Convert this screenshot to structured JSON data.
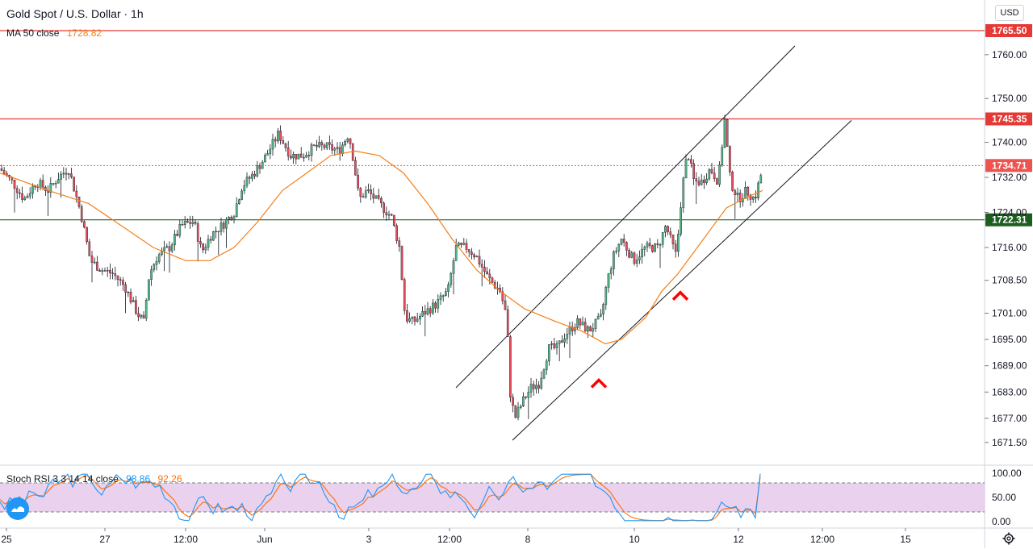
{
  "header": {
    "symbol_title": "Gold Spot / U.S. Dollar · 1h",
    "ma_label": "MA 50 close",
    "ma_value": "1728.82",
    "currency": "USD"
  },
  "oscillator": {
    "label": "Stoch RSI 3 3 14 14 close",
    "k_value": "98.86",
    "d_value": "92.26",
    "upper_band": 80,
    "lower_band": 20,
    "ticks": [
      "100.00",
      "50.00",
      "0.00"
    ]
  },
  "colors": {
    "up_candle": "#53b987",
    "down_candle": "#eb4d5c",
    "wick": "#131722",
    "ma": "#f57f17",
    "resistance": "#e53935",
    "support": "#1b5e20",
    "last_price": "#ef5350",
    "k_line": "#2196f3",
    "d_line": "#ff6d00",
    "band_fill": "#e1bee7",
    "marker": "#ff0000"
  },
  "chart_data": {
    "type": "candlestick",
    "title": "Gold Spot / U.S. Dollar · 1h",
    "y_axis_ticks": [
      "1760.00",
      "1750.00",
      "1740.00",
      "1732.00",
      "1724.00",
      "1716.00",
      "1708.50",
      "1701.00",
      "1695.00",
      "1689.00",
      "1683.00",
      "1677.00",
      "1671.50"
    ],
    "y_axis_values": [
      1760.0,
      1750.0,
      1740.0,
      1732.0,
      1724.0,
      1716.0,
      1708.5,
      1701.0,
      1695.0,
      1689.0,
      1683.0,
      1677.0,
      1671.5
    ],
    "x_axis_ticks": [
      "25",
      "27",
      "12:00",
      "Jun",
      "3",
      "12:00",
      "8",
      "10",
      "12",
      "12:00",
      "15"
    ],
    "ylim": [
      1669,
      1771
    ],
    "horizontal_levels": [
      {
        "value": 1765.5,
        "label": "1765.50",
        "role": "resistance"
      },
      {
        "value": 1745.35,
        "label": "1745.35",
        "role": "resistance"
      },
      {
        "value": 1734.71,
        "label": "1734.71",
        "role": "last_price"
      },
      {
        "value": 1722.31,
        "label": "1722.31",
        "role": "support"
      }
    ],
    "ma_path": [
      [
        0,
        1733
      ],
      [
        60,
        1729
      ],
      [
        110,
        1726
      ],
      [
        150,
        1721
      ],
      [
        190,
        1716
      ],
      [
        230,
        1713
      ],
      [
        260,
        1713
      ],
      [
        290,
        1716
      ],
      [
        320,
        1722
      ],
      [
        350,
        1729
      ],
      [
        380,
        1733
      ],
      [
        410,
        1737
      ],
      [
        440,
        1738
      ],
      [
        470,
        1737
      ],
      [
        500,
        1733
      ],
      [
        530,
        1726
      ],
      [
        560,
        1718
      ],
      [
        590,
        1711
      ],
      [
        620,
        1706
      ],
      [
        650,
        1702
      ],
      [
        690,
        1699
      ],
      [
        720,
        1697
      ],
      [
        750,
        1694
      ],
      [
        770,
        1695
      ],
      [
        800,
        1700
      ],
      [
        820,
        1706
      ],
      [
        840,
        1710
      ],
      [
        860,
        1715
      ],
      [
        880,
        1720
      ],
      [
        900,
        1725
      ],
      [
        920,
        1727
      ],
      [
        945,
        1729
      ]
    ],
    "price_path": [
      [
        0,
        1734
      ],
      [
        15,
        1731
      ],
      [
        30,
        1727
      ],
      [
        45,
        1731
      ],
      [
        60,
        1729
      ],
      [
        72,
        1732
      ],
      [
        85,
        1734
      ],
      [
        100,
        1724
      ],
      [
        112,
        1713
      ],
      [
        125,
        1711
      ],
      [
        140,
        1710
      ],
      [
        155,
        1707
      ],
      [
        170,
        1701
      ],
      [
        178,
        1699
      ],
      [
        185,
        1710
      ],
      [
        195,
        1714
      ],
      [
        210,
        1716
      ],
      [
        225,
        1721
      ],
      [
        240,
        1722
      ],
      [
        250,
        1715
      ],
      [
        262,
        1719
      ],
      [
        275,
        1721
      ],
      [
        290,
        1724
      ],
      [
        300,
        1730
      ],
      [
        315,
        1733
      ],
      [
        330,
        1737
      ],
      [
        345,
        1742
      ],
      [
        360,
        1737
      ],
      [
        375,
        1737
      ],
      [
        390,
        1739
      ],
      [
        405,
        1739
      ],
      [
        420,
        1738
      ],
      [
        432,
        1742
      ],
      [
        438,
        1736
      ],
      [
        445,
        1727
      ],
      [
        455,
        1729
      ],
      [
        470,
        1726
      ],
      [
        485,
        1723
      ],
      [
        495,
        1716
      ],
      [
        502,
        1700
      ],
      [
        512,
        1699
      ],
      [
        525,
        1701
      ],
      [
        540,
        1703
      ],
      [
        555,
        1706
      ],
      [
        565,
        1716
      ],
      [
        578,
        1716
      ],
      [
        590,
        1714
      ],
      [
        605,
        1709
      ],
      [
        620,
        1706
      ],
      [
        628,
        1700
      ],
      [
        632,
        1683
      ],
      [
        638,
        1677
      ],
      [
        648,
        1681
      ],
      [
        658,
        1684
      ],
      [
        668,
        1685
      ],
      [
        680,
        1693
      ],
      [
        690,
        1693
      ],
      [
        700,
        1696
      ],
      [
        715,
        1699
      ],
      [
        730,
        1697
      ],
      [
        745,
        1700
      ],
      [
        752,
        1708
      ],
      [
        760,
        1714
      ],
      [
        770,
        1718
      ],
      [
        785,
        1713
      ],
      [
        800,
        1716
      ],
      [
        815,
        1716
      ],
      [
        825,
        1721
      ],
      [
        838,
        1714
      ],
      [
        845,
        1729
      ],
      [
        852,
        1738
      ],
      [
        860,
        1731
      ],
      [
        870,
        1731
      ],
      [
        880,
        1734
      ],
      [
        890,
        1731
      ],
      [
        898,
        1745
      ],
      [
        905,
        1731
      ],
      [
        915,
        1727
      ],
      [
        925,
        1729
      ],
      [
        935,
        1727
      ],
      [
        945,
        1734
      ]
    ],
    "upper_channel": [
      [
        565,
        1684
      ],
      [
        985,
        1762
      ]
    ],
    "lower_channel": [
      [
        635,
        1672
      ],
      [
        1055,
        1745
      ]
    ],
    "markers": [
      {
        "x": 742,
        "y": 1685
      },
      {
        "x": 843,
        "y": 1705
      }
    ]
  }
}
